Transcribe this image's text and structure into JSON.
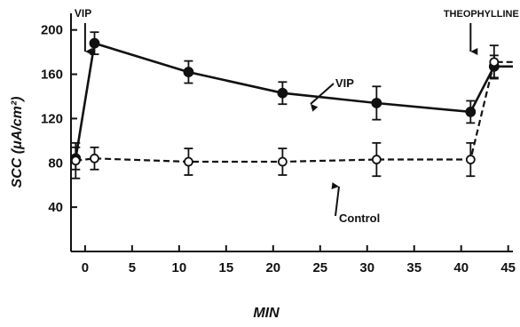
{
  "chart_data": {
    "type": "line",
    "xlabel": "MIN",
    "ylabel": "SCC (μA/cm²)",
    "xlim": [
      -1.5,
      45.5
    ],
    "ylim": [
      0,
      215
    ],
    "x_ticks": [
      0,
      5,
      10,
      15,
      20,
      25,
      30,
      35,
      40,
      45
    ],
    "y_ticks": [
      40,
      80,
      120,
      160,
      200
    ],
    "series": [
      {
        "name": "VIP",
        "marker": "filled-circle",
        "line": "solid",
        "x": [
          -1,
          1,
          11,
          21,
          31,
          41,
          43.5,
          45.5
        ],
        "y": [
          84,
          188,
          162,
          143,
          134,
          126,
          167,
          167
        ],
        "err": [
          10,
          10,
          10,
          10,
          15,
          10,
          10,
          null
        ]
      },
      {
        "name": "Control",
        "marker": "open-circle",
        "line": "dashed",
        "x": [
          -1,
          1,
          11,
          21,
          31,
          41,
          43.5,
          45.5
        ],
        "y": [
          82,
          84,
          81,
          81,
          83,
          83,
          171,
          171
        ],
        "err": [
          16,
          10,
          12,
          12,
          15,
          15,
          15,
          null
        ]
      }
    ],
    "annotations": [
      {
        "text": "VIP",
        "kind": "arrow-down",
        "at_x": 0
      },
      {
        "text": "THEOPHYLLINE",
        "kind": "arrow-down",
        "at_x": 41
      },
      {
        "text": "VIP",
        "kind": "series-label",
        "series": "VIP"
      },
      {
        "text": "Control",
        "kind": "series-label",
        "series": "Control"
      }
    ]
  }
}
